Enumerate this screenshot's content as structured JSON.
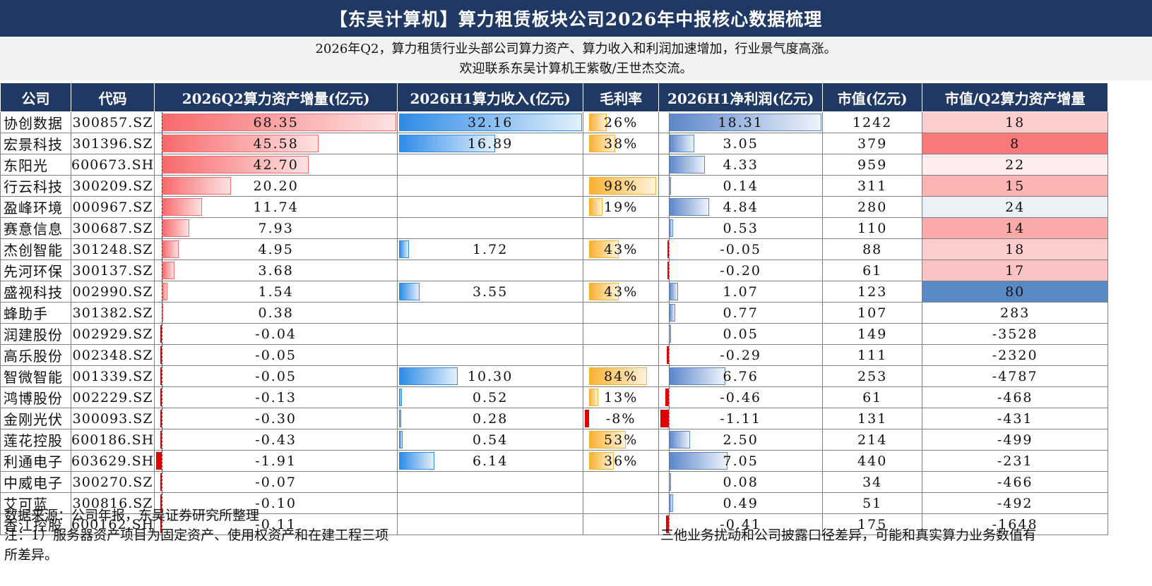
{
  "title": "【东吴计算机】算力租赁板块公司2026年中报核心数据梳理",
  "subtitle_lines": [
    "2026年Q2，算力租赁行业头部公司算力资产、算力收入和利润加速增加，行业景气度高涨。",
    "欢迎联系东吴计算机王紫敬/王世杰交流。"
  ],
  "headers": [
    "公司",
    "代码",
    "2026Q2算力资产增量(亿元)",
    "2026H1算力收入(亿元)",
    "毛利率",
    "2026H1净利润(亿元)",
    "市值(亿元)",
    "市值/Q2算力资产增量"
  ],
  "rows": [
    {
      "company": "协创数据",
      "code": "300857.SZ",
      "asset": "68.35",
      "revenue": "32.16",
      "margin": "26%",
      "profit": "18.31",
      "mcap": "1242",
      "ratio": "18"
    },
    {
      "company": "宏景科技",
      "code": "301396.SZ",
      "asset": "45.58",
      "revenue": "16.89",
      "margin": "38%",
      "profit": "3.05",
      "mcap": "379",
      "ratio": "8"
    },
    {
      "company": "东阳光",
      "code": "600673.SH",
      "asset": "42.70",
      "revenue": "",
      "margin": "",
      "profit": "4.33",
      "mcap": "959",
      "ratio": "22"
    },
    {
      "company": "行云科技",
      "code": "300209.SZ",
      "asset": "20.20",
      "revenue": "",
      "margin": "98%",
      "profit": "0.14",
      "mcap": "311",
      "ratio": "15"
    },
    {
      "company": "盈峰环境",
      "code": "000967.SZ",
      "asset": "11.74",
      "revenue": "",
      "margin": "19%",
      "profit": "4.84",
      "mcap": "280",
      "ratio": "24"
    },
    {
      "company": "赛意信息",
      "code": "300687.SZ",
      "asset": "7.93",
      "revenue": "",
      "margin": "",
      "profit": "0.53",
      "mcap": "110",
      "ratio": "14"
    },
    {
      "company": "杰创智能",
      "code": "301248.SZ",
      "asset": "4.95",
      "revenue": "1.72",
      "margin": "43%",
      "profit": "-0.05",
      "mcap": "88",
      "ratio": "18"
    },
    {
      "company": "先河环保",
      "code": "300137.SZ",
      "asset": "3.68",
      "revenue": "",
      "margin": "",
      "profit": "-0.20",
      "mcap": "61",
      "ratio": "17"
    },
    {
      "company": "盛视科技",
      "code": "002990.SZ",
      "asset": "1.54",
      "revenue": "3.55",
      "margin": "43%",
      "profit": "1.07",
      "mcap": "123",
      "ratio": "80"
    },
    {
      "company": "蜂助手",
      "code": "301382.SZ",
      "asset": "0.38",
      "revenue": "",
      "margin": "",
      "profit": "0.77",
      "mcap": "107",
      "ratio": "283"
    },
    {
      "company": "润建股份",
      "code": "002929.SZ",
      "asset": "-0.04",
      "revenue": "",
      "margin": "",
      "profit": "0.05",
      "mcap": "149",
      "ratio": "-3528"
    },
    {
      "company": "高乐股份",
      "code": "002348.SZ",
      "asset": "-0.05",
      "revenue": "",
      "margin": "",
      "profit": "-0.29",
      "mcap": "111",
      "ratio": "-2320"
    },
    {
      "company": "智微智能",
      "code": "001339.SZ",
      "asset": "-0.05",
      "revenue": "10.30",
      "margin": "84%",
      "profit": "6.76",
      "mcap": "253",
      "ratio": "-4787"
    },
    {
      "company": "鸿博股份",
      "code": "002229.SZ",
      "asset": "-0.13",
      "revenue": "0.52",
      "margin": "13%",
      "profit": "-0.46",
      "mcap": "61",
      "ratio": "-468"
    },
    {
      "company": "金刚光伏",
      "code": "300093.SZ",
      "asset": "-0.30",
      "revenue": "0.28",
      "margin": "-8%",
      "profit": "-1.11",
      "mcap": "131",
      "ratio": "-431"
    },
    {
      "company": "莲花控股",
      "code": "600186.SH",
      "asset": "-0.43",
      "revenue": "0.54",
      "margin": "53%",
      "profit": "2.50",
      "mcap": "214",
      "ratio": "-499"
    },
    {
      "company": "利通电子",
      "code": "603629.SH",
      "asset": "-1.91",
      "revenue": "6.14",
      "margin": "36%",
      "profit": "7.05",
      "mcap": "440",
      "ratio": "-231"
    },
    {
      "company": "中威电子",
      "code": "300270.SZ",
      "asset": "-0.07",
      "revenue": "",
      "margin": "",
      "profit": "0.08",
      "mcap": "34",
      "ratio": "-466"
    },
    {
      "company": "艾可蓝",
      "code": "300816.SZ",
      "asset": "-0.10",
      "revenue": "",
      "margin": "",
      "profit": "0.49",
      "mcap": "51",
      "ratio": "-492"
    },
    {
      "company": "香江控股",
      "code": "600162.SH",
      "asset": "-0.11",
      "revenue": "",
      "margin": "",
      "profit": "-0.41",
      "mcap": "175",
      "ratio": "-1648"
    }
  ],
  "footnotes": [
    "数据来源：公司年报，东吴证券研究所整理",
    "注：1）服务器资产项目为固定资产、使用权资产和在建工程三项",
    "三他业务扰动和公司披露口径差异，可能和真实算力业务数值有",
    "所差异。"
  ],
  "colors": {
    "header_bg": "#1f3864",
    "asset_bar": "#f8696b",
    "revenue_bar": "#2e8be6",
    "margin_bar": "#f9b233",
    "profit_bar": "#5b86c9",
    "ratio_low": "#f8696b",
    "ratio_high": "#5a8ac6"
  }
}
